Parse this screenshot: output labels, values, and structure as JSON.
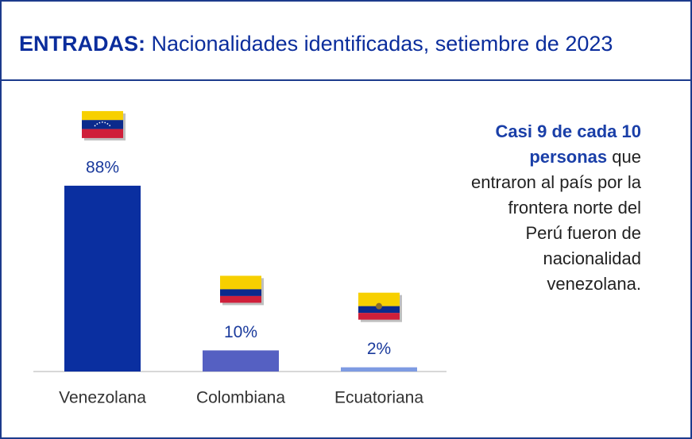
{
  "chart_data": {
    "type": "bar",
    "title_lead": "ENTRADAS:",
    "title": "Nacionalidades identificadas, setiembre de 2023",
    "categories": [
      "Venezolana",
      "Colombiana",
      "Ecuatoriana"
    ],
    "values": [
      88,
      10,
      2
    ],
    "value_labels": [
      "88%",
      "10%",
      "2%"
    ],
    "colors": [
      "#0a2fa0",
      "#5560c2",
      "#7e9be2"
    ],
    "ylim": [
      0,
      100
    ],
    "annotation": {
      "lead": "Casi 9 de cada 10 personas",
      "text": "que entraron al país por la frontera norte del Perú fueron de nacionalidad venezolana."
    }
  }
}
